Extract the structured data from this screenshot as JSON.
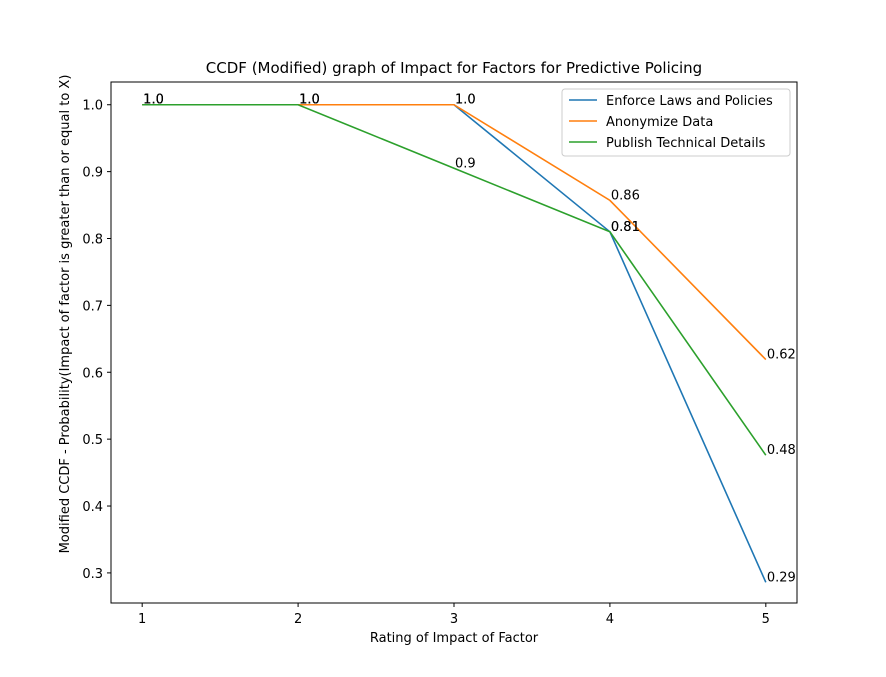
{
  "chart_data": {
    "type": "line",
    "title": "CCDF (Modified) graph of Impact for Factors for Predictive Policing",
    "xlabel": "Rating of Impact of Factor",
    "ylabel": "Modified CCDF - Probability(Impact of factor is greater than or equal to X)",
    "x": [
      1,
      2,
      3,
      4,
      5
    ],
    "xlim": [
      0.8,
      5.2
    ],
    "ylim": [
      0.255,
      1.034
    ],
    "xticks": [
      "1",
      "2",
      "3",
      "4",
      "5"
    ],
    "yticks": [
      "0.3",
      "0.4",
      "0.5",
      "0.6",
      "0.7",
      "0.8",
      "0.9",
      "1.0"
    ],
    "grid": false,
    "legend_position": "top-right",
    "series": [
      {
        "name": "Enforce Laws and Policies",
        "color": "#1f77b4",
        "values": [
          1.0,
          1.0,
          1.0,
          0.81,
          0.286
        ],
        "labels": [
          "1.0",
          "1.0",
          "1.0",
          "0.81",
          "0.29"
        ]
      },
      {
        "name": "Anonymize Data",
        "color": "#ff7f0e",
        "values": [
          1.0,
          1.0,
          1.0,
          0.857,
          0.619
        ],
        "labels": [
          "1.0",
          "1.0",
          "1.0",
          "0.86",
          "0.62"
        ]
      },
      {
        "name": "Publish Technical Details",
        "color": "#2ca02c",
        "values": [
          1.0,
          1.0,
          0.905,
          0.81,
          0.476
        ],
        "labels": [
          "1.0",
          "1.0",
          "0.9",
          "0.81",
          "0.48"
        ]
      }
    ]
  }
}
